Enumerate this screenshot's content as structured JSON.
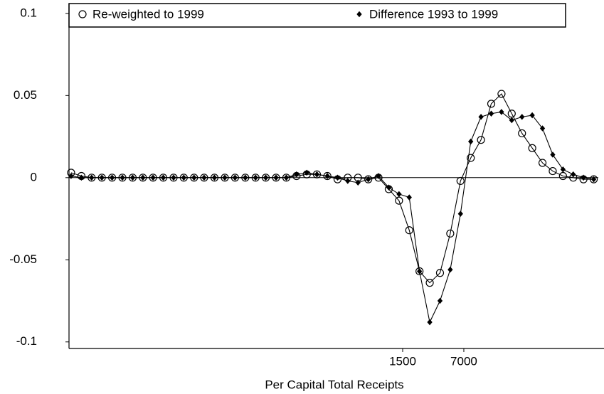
{
  "chart_data": {
    "type": "line",
    "x_label": "Per Capital Total Receipts",
    "x": [
      0.354,
      0.459,
      0.594,
      0.769,
      0.995,
      1.29,
      1.67,
      2.16,
      2.79,
      3.61,
      4.68,
      6.05,
      7.84,
      10.1,
      13.1,
      17.0,
      22.0,
      28.5,
      36.9,
      47.7,
      61.8,
      80.0,
      103.5,
      134,
      173,
      225,
      291,
      376,
      487,
      631,
      816,
      1057,
      1368,
      1771,
      2292,
      2967,
      3841,
      4972,
      6437,
      8332,
      10786,
      13963,
      18075,
      23399,
      30290,
      39211,
      50759,
      65708,
      85060,
      110110,
      142540,
      184520
    ],
    "xscale": "log",
    "xlim": [
      0.336,
      239000
    ],
    "xticks": [
      1500,
      7000
    ],
    "ylim": [
      -0.104,
      0.106
    ],
    "yticks": [
      {
        "value": 0.1,
        "label": "0.1"
      },
      {
        "value": 0.05,
        "label": "0.05"
      },
      0,
      {
        "value": -0.05,
        "label": "-0.05"
      },
      {
        "value": -0.1,
        "label": "-0.1"
      }
    ],
    "series": [
      {
        "name": "Re-weighted to 1999",
        "marker": "circle",
        "color": "#000000",
        "values": [
          0.003,
          0.001,
          0,
          0,
          0,
          0,
          0,
          0,
          0,
          0,
          0,
          0,
          0,
          0,
          0,
          0,
          0,
          0,
          0,
          0,
          0,
          0,
          0.001,
          0.002,
          0.002,
          0.001,
          -0.001,
          0,
          0,
          -0.001,
          0,
          -0.007,
          -0.014,
          -0.032,
          -0.057,
          -0.064,
          -0.058,
          -0.034,
          -0.002,
          0.012,
          0.023,
          0.045,
          0.051,
          0.039,
          0.027,
          0.018,
          0.009,
          0.004,
          0.001,
          0,
          -0.001,
          -0.001
        ]
      },
      {
        "name": "Difference 1993 to 1999",
        "marker": "diamond",
        "color": "#000000",
        "values": [
          0.001,
          0,
          0,
          0,
          0,
          0,
          0,
          0,
          0,
          0,
          0,
          0,
          0,
          0,
          0,
          0,
          0,
          0,
          0,
          0,
          0,
          0,
          0.002,
          0.003,
          0.002,
          0.001,
          0,
          -0.002,
          -0.003,
          -0.001,
          0.001,
          -0.006,
          -0.01,
          -0.012,
          -0.057,
          -0.088,
          -0.075,
          -0.056,
          -0.022,
          0.022,
          0.037,
          0.039,
          0.04,
          0.035,
          0.037,
          0.038,
          0.03,
          0.014,
          0.005,
          0.002,
          0,
          -0.001
        ]
      }
    ]
  }
}
